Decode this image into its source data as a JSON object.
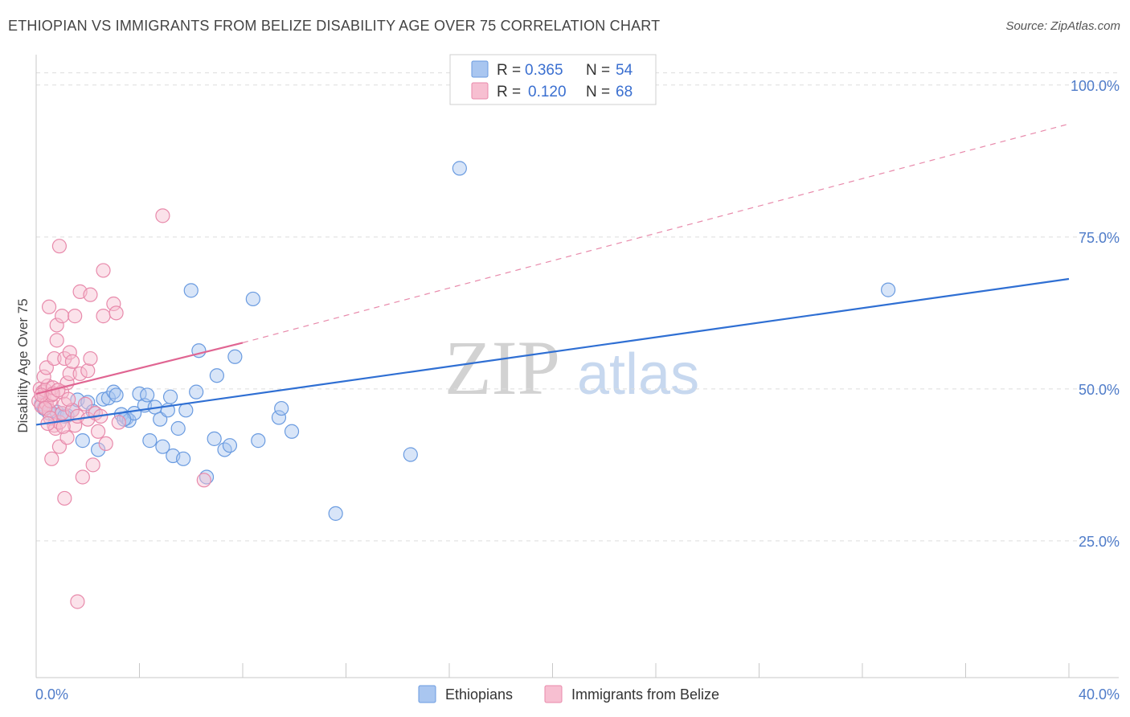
{
  "title": "ETHIOPIAN VS IMMIGRANTS FROM BELIZE DISABILITY AGE OVER 75 CORRELATION CHART",
  "source": "Source: ZipAtlas.com",
  "chart_data": {
    "type": "scatter",
    "title": "ETHIOPIAN VS IMMIGRANTS FROM BELIZE DISABILITY AGE OVER 75 CORRELATION CHART",
    "xlabel": "",
    "ylabel": "Disability Age Over 75",
    "xlim": [
      0,
      40
    ],
    "ylim": [
      2.5,
      105
    ],
    "x_tick_labels": [
      "0.0%",
      "40.0%"
    ],
    "y_ticks": [
      25,
      50,
      75,
      100
    ],
    "y_tick_labels": [
      "25.0%",
      "50.0%",
      "75.0%",
      "100.0%"
    ],
    "watermark": {
      "part1": "ZIP",
      "part2": "atlas"
    },
    "legend": [
      {
        "r_label": "R = ",
        "r_value": "0.365",
        "n_label": "N = ",
        "n_value": "54"
      },
      {
        "r_label": "R = ",
        "r_value": "0.120",
        "n_label": "N = ",
        "n_value": "68"
      }
    ],
    "series": [
      {
        "name": "Ethiopians",
        "color": "#6a9be0",
        "fill": "#a9c6f0",
        "trend": {
          "x": [
            0,
            40
          ],
          "y": [
            44.1,
            68.1
          ]
        },
        "points": [
          [
            0.2,
            47.5
          ],
          [
            0.3,
            46.8
          ],
          [
            0.5,
            46.0
          ],
          [
            0.7,
            45.8
          ],
          [
            0.8,
            46.2
          ],
          [
            1.0,
            46.0
          ],
          [
            1.2,
            45.6
          ],
          [
            1.4,
            46.5
          ],
          [
            1.6,
            48.2
          ],
          [
            1.8,
            41.5
          ],
          [
            2.0,
            47.8
          ],
          [
            2.2,
            46.3
          ],
          [
            2.4,
            40.0
          ],
          [
            2.6,
            48.3
          ],
          [
            2.8,
            48.5
          ],
          [
            3.0,
            49.5
          ],
          [
            3.1,
            49.0
          ],
          [
            3.3,
            45.8
          ],
          [
            3.5,
            45.2
          ],
          [
            3.6,
            44.8
          ],
          [
            3.8,
            46.0
          ],
          [
            4.0,
            49.2
          ],
          [
            4.2,
            47.3
          ],
          [
            4.3,
            49.0
          ],
          [
            4.4,
            41.5
          ],
          [
            4.6,
            47.0
          ],
          [
            4.8,
            45.0
          ],
          [
            4.9,
            40.5
          ],
          [
            5.1,
            46.5
          ],
          [
            5.2,
            48.7
          ],
          [
            5.3,
            39.0
          ],
          [
            5.5,
            43.5
          ],
          [
            5.7,
            38.5
          ],
          [
            5.8,
            46.5
          ],
          [
            6.0,
            66.2
          ],
          [
            6.2,
            49.5
          ],
          [
            6.3,
            56.3
          ],
          [
            6.6,
            35.5
          ],
          [
            6.9,
            41.8
          ],
          [
            7.0,
            52.2
          ],
          [
            7.3,
            40.0
          ],
          [
            7.5,
            40.7
          ],
          [
            7.7,
            55.3
          ],
          [
            8.4,
            64.8
          ],
          [
            8.6,
            41.5
          ],
          [
            9.4,
            45.3
          ],
          [
            9.5,
            46.8
          ],
          [
            9.9,
            43.0
          ],
          [
            11.6,
            29.5
          ],
          [
            14.5,
            39.2
          ],
          [
            16.4,
            86.3
          ],
          [
            33.0,
            66.3
          ],
          [
            3.4,
            45.0
          ],
          [
            1.1,
            45.5
          ]
        ]
      },
      {
        "name": "Immigrants from Belize",
        "color": "#e88aab",
        "fill": "#f7bfd1",
        "trend": {
          "x": [
            0,
            8.0
          ],
          "y": [
            49.2,
            57.6
          ]
        },
        "trend_ext": {
          "x": [
            8.0,
            40
          ],
          "y": [
            57.6,
            93.6
          ]
        },
        "points": [
          [
            0.1,
            48.0
          ],
          [
            0.15,
            50.0
          ],
          [
            0.2,
            47.2
          ],
          [
            0.25,
            49.5
          ],
          [
            0.3,
            48.8
          ],
          [
            0.35,
            49.8
          ],
          [
            0.4,
            47.5
          ],
          [
            0.45,
            50.5
          ],
          [
            0.5,
            46.5
          ],
          [
            0.55,
            48.0
          ],
          [
            0.6,
            49.0
          ],
          [
            0.65,
            50.2
          ],
          [
            0.7,
            44.0
          ],
          [
            0.75,
            43.5
          ],
          [
            0.3,
            52.0
          ],
          [
            0.4,
            53.5
          ],
          [
            0.5,
            63.5
          ],
          [
            0.6,
            38.5
          ],
          [
            0.7,
            55.0
          ],
          [
            0.8,
            60.5
          ],
          [
            0.8,
            58.0
          ],
          [
            0.9,
            44.5
          ],
          [
            0.9,
            40.5
          ],
          [
            1.0,
            46.0
          ],
          [
            1.0,
            49.5
          ],
          [
            1.0,
            62.0
          ],
          [
            1.1,
            55.0
          ],
          [
            1.1,
            47.5
          ],
          [
            0.9,
            73.5
          ],
          [
            1.1,
            32.0
          ],
          [
            1.2,
            51.0
          ],
          [
            1.2,
            42.0
          ],
          [
            1.3,
            56.0
          ],
          [
            1.3,
            52.5
          ],
          [
            1.4,
            54.5
          ],
          [
            1.4,
            46.5
          ],
          [
            1.5,
            62.0
          ],
          [
            1.5,
            44.0
          ],
          [
            1.6,
            15.0
          ],
          [
            1.6,
            45.5
          ],
          [
            1.7,
            66.0
          ],
          [
            1.7,
            52.5
          ],
          [
            1.8,
            35.5
          ],
          [
            1.9,
            47.5
          ],
          [
            2.0,
            53.0
          ],
          [
            2.0,
            45.0
          ],
          [
            2.1,
            55.0
          ],
          [
            2.1,
            65.5
          ],
          [
            2.2,
            37.5
          ],
          [
            2.3,
            46.0
          ],
          [
            2.4,
            43.0
          ],
          [
            2.5,
            45.5
          ],
          [
            2.6,
            69.5
          ],
          [
            2.6,
            62.0
          ],
          [
            2.7,
            41.0
          ],
          [
            3.0,
            64.0
          ],
          [
            3.1,
            62.5
          ],
          [
            3.2,
            44.5
          ],
          [
            4.9,
            78.5
          ],
          [
            6.5,
            35.0
          ],
          [
            0.2,
            49.0
          ],
          [
            0.35,
            46.8
          ],
          [
            0.55,
            45.2
          ],
          [
            0.65,
            49.2
          ],
          [
            0.85,
            49.8
          ],
          [
            1.25,
            48.3
          ],
          [
            0.45,
            44.3
          ],
          [
            1.05,
            43.8
          ]
        ]
      }
    ]
  }
}
